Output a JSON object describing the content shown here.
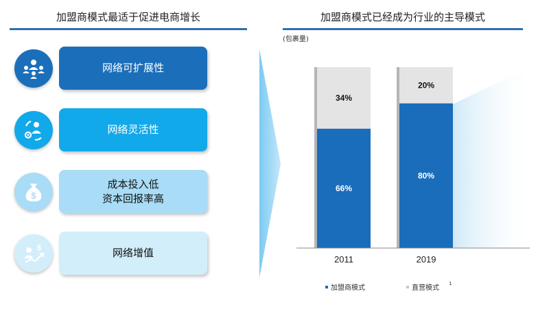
{
  "left_panel": {
    "title": "加盟商模式最适于促进电商增长",
    "features": [
      {
        "lines": [
          "网络可扩展性"
        ],
        "icon": "group-network-icon"
      },
      {
        "lines": [
          "网络灵活性"
        ],
        "icon": "person-cycle-icon"
      },
      {
        "lines": [
          "成本投入低",
          "资本回报率高"
        ],
        "icon": "money-bag-icon"
      },
      {
        "lines": [
          "网络增值"
        ],
        "icon": "growth-chart-icon"
      }
    ]
  },
  "right_panel": {
    "title": "加盟商模式已经成为行业的主导模式"
  },
  "chart_data": {
    "type": "bar",
    "stacked": true,
    "percent": true,
    "title": "加盟商模式已经成为行业的主导模式",
    "unit_label": "(包裹量)",
    "categories": [
      "2011",
      "2019"
    ],
    "series": [
      {
        "name": "加盟商模式",
        "values": [
          66,
          80
        ],
        "labels": [
          "66%",
          "80%"
        ],
        "color": "#1a6dbb"
      },
      {
        "name": "直营模式",
        "superscript": "1",
        "values": [
          34,
          20
        ],
        "labels": [
          "34%",
          "20%"
        ],
        "color": "#e4e4e4"
      }
    ],
    "ylim": [
      0,
      100
    ],
    "grid": false,
    "legend_position": "bottom"
  },
  "colors": {
    "accent": "#2d6fb0",
    "arrow": "#9fd6f6"
  }
}
